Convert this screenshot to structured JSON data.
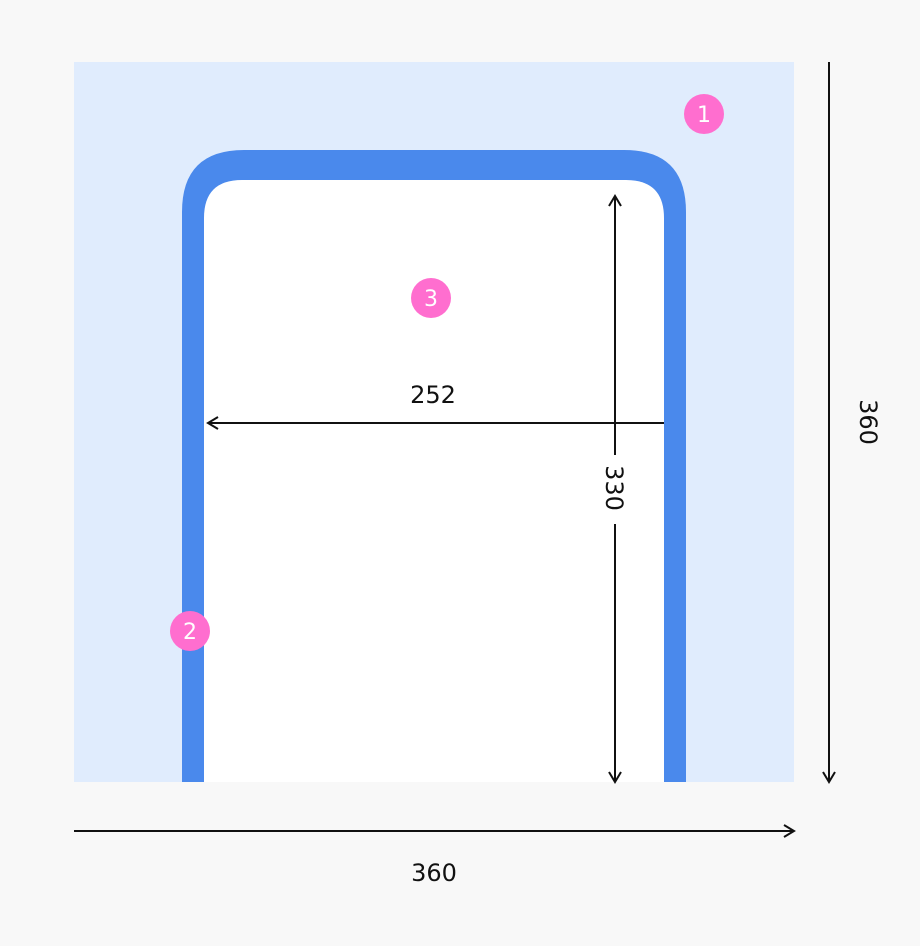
{
  "colors": {
    "background": "#f8f8f8",
    "area": "#e0ecfd",
    "frame": "#4a89ec",
    "inner": "#ffffff",
    "badge": "#ff6ecf",
    "dimension": "#111111"
  },
  "badges": [
    "1",
    "2",
    "3"
  ],
  "dimensions": {
    "inner_width": "252",
    "inner_height": "330",
    "total_height": "360",
    "total_width": "360"
  }
}
